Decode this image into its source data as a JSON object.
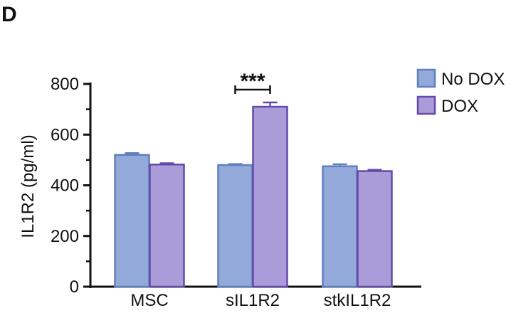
{
  "chart_data": {
    "type": "bar",
    "panel_label": "D",
    "title": "",
    "xlabel": "",
    "ylabel": "IL1R2 (pg/ml)",
    "ylim": [
      0,
      800
    ],
    "yticks": [
      0,
      200,
      400,
      600,
      800
    ],
    "categories": [
      "MSC",
      "sIL1R2",
      "stkIL1R2"
    ],
    "series": [
      {
        "name": "No DOX",
        "values": [
          520,
          480,
          475
        ],
        "errors": [
          7,
          4,
          8
        ],
        "color": "#92a9da",
        "edge_color": "#5f7fbe"
      },
      {
        "name": "DOX",
        "values": [
          482,
          710,
          456
        ],
        "errors": [
          5,
          17,
          5
        ],
        "color": "#a99cd9",
        "edge_color": "#6548aa"
      }
    ],
    "significance": [
      {
        "label": "***",
        "category": "sIL1R2"
      }
    ],
    "legend": {
      "placement": "top-right"
    },
    "grid": false
  }
}
